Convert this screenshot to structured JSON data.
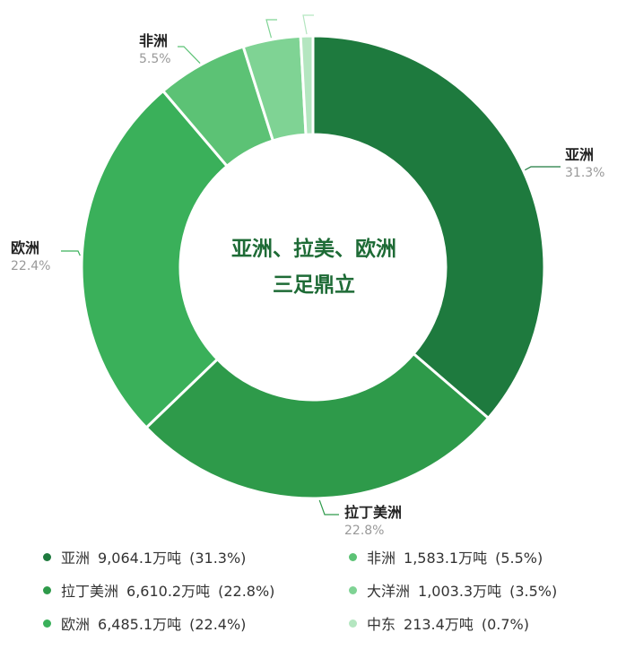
{
  "chart_data": {
    "type": "donut",
    "title": "",
    "center_text": [
      "亚洲、拉美、欧洲",
      "三足鼎立"
    ],
    "unit": "万吨",
    "categories": [
      "亚洲",
      "拉丁美洲",
      "欧洲",
      "非洲",
      "大洋洲",
      "中东"
    ],
    "values": [
      9064.1,
      6610.2,
      6485.1,
      1583.1,
      1003.3,
      213.4
    ],
    "value_labels": [
      "9,064.1万吨",
      "6,610.2万吨",
      "6,485.1万吨",
      "1,583.1万吨",
      "1,003.3万吨",
      "213.4万吨"
    ],
    "percents": [
      31.3,
      22.8,
      22.4,
      5.5,
      3.5,
      0.7
    ],
    "percent_labels": [
      "31.3%",
      "22.8%",
      "22.4%",
      "5.5%",
      "3.5%",
      "0.7%"
    ],
    "legend_pct_labels": [
      "(31.3%)",
      "(22.8%)",
      "(22.4%)",
      "(5.5%)",
      "(3.5%)",
      "(0.7%)"
    ],
    "colors": [
      "#1e7a3e",
      "#2e9a4a",
      "#3ab05a",
      "#5cc275",
      "#7fd394",
      "#b4e6c0"
    ],
    "legend_position": "bottom"
  }
}
